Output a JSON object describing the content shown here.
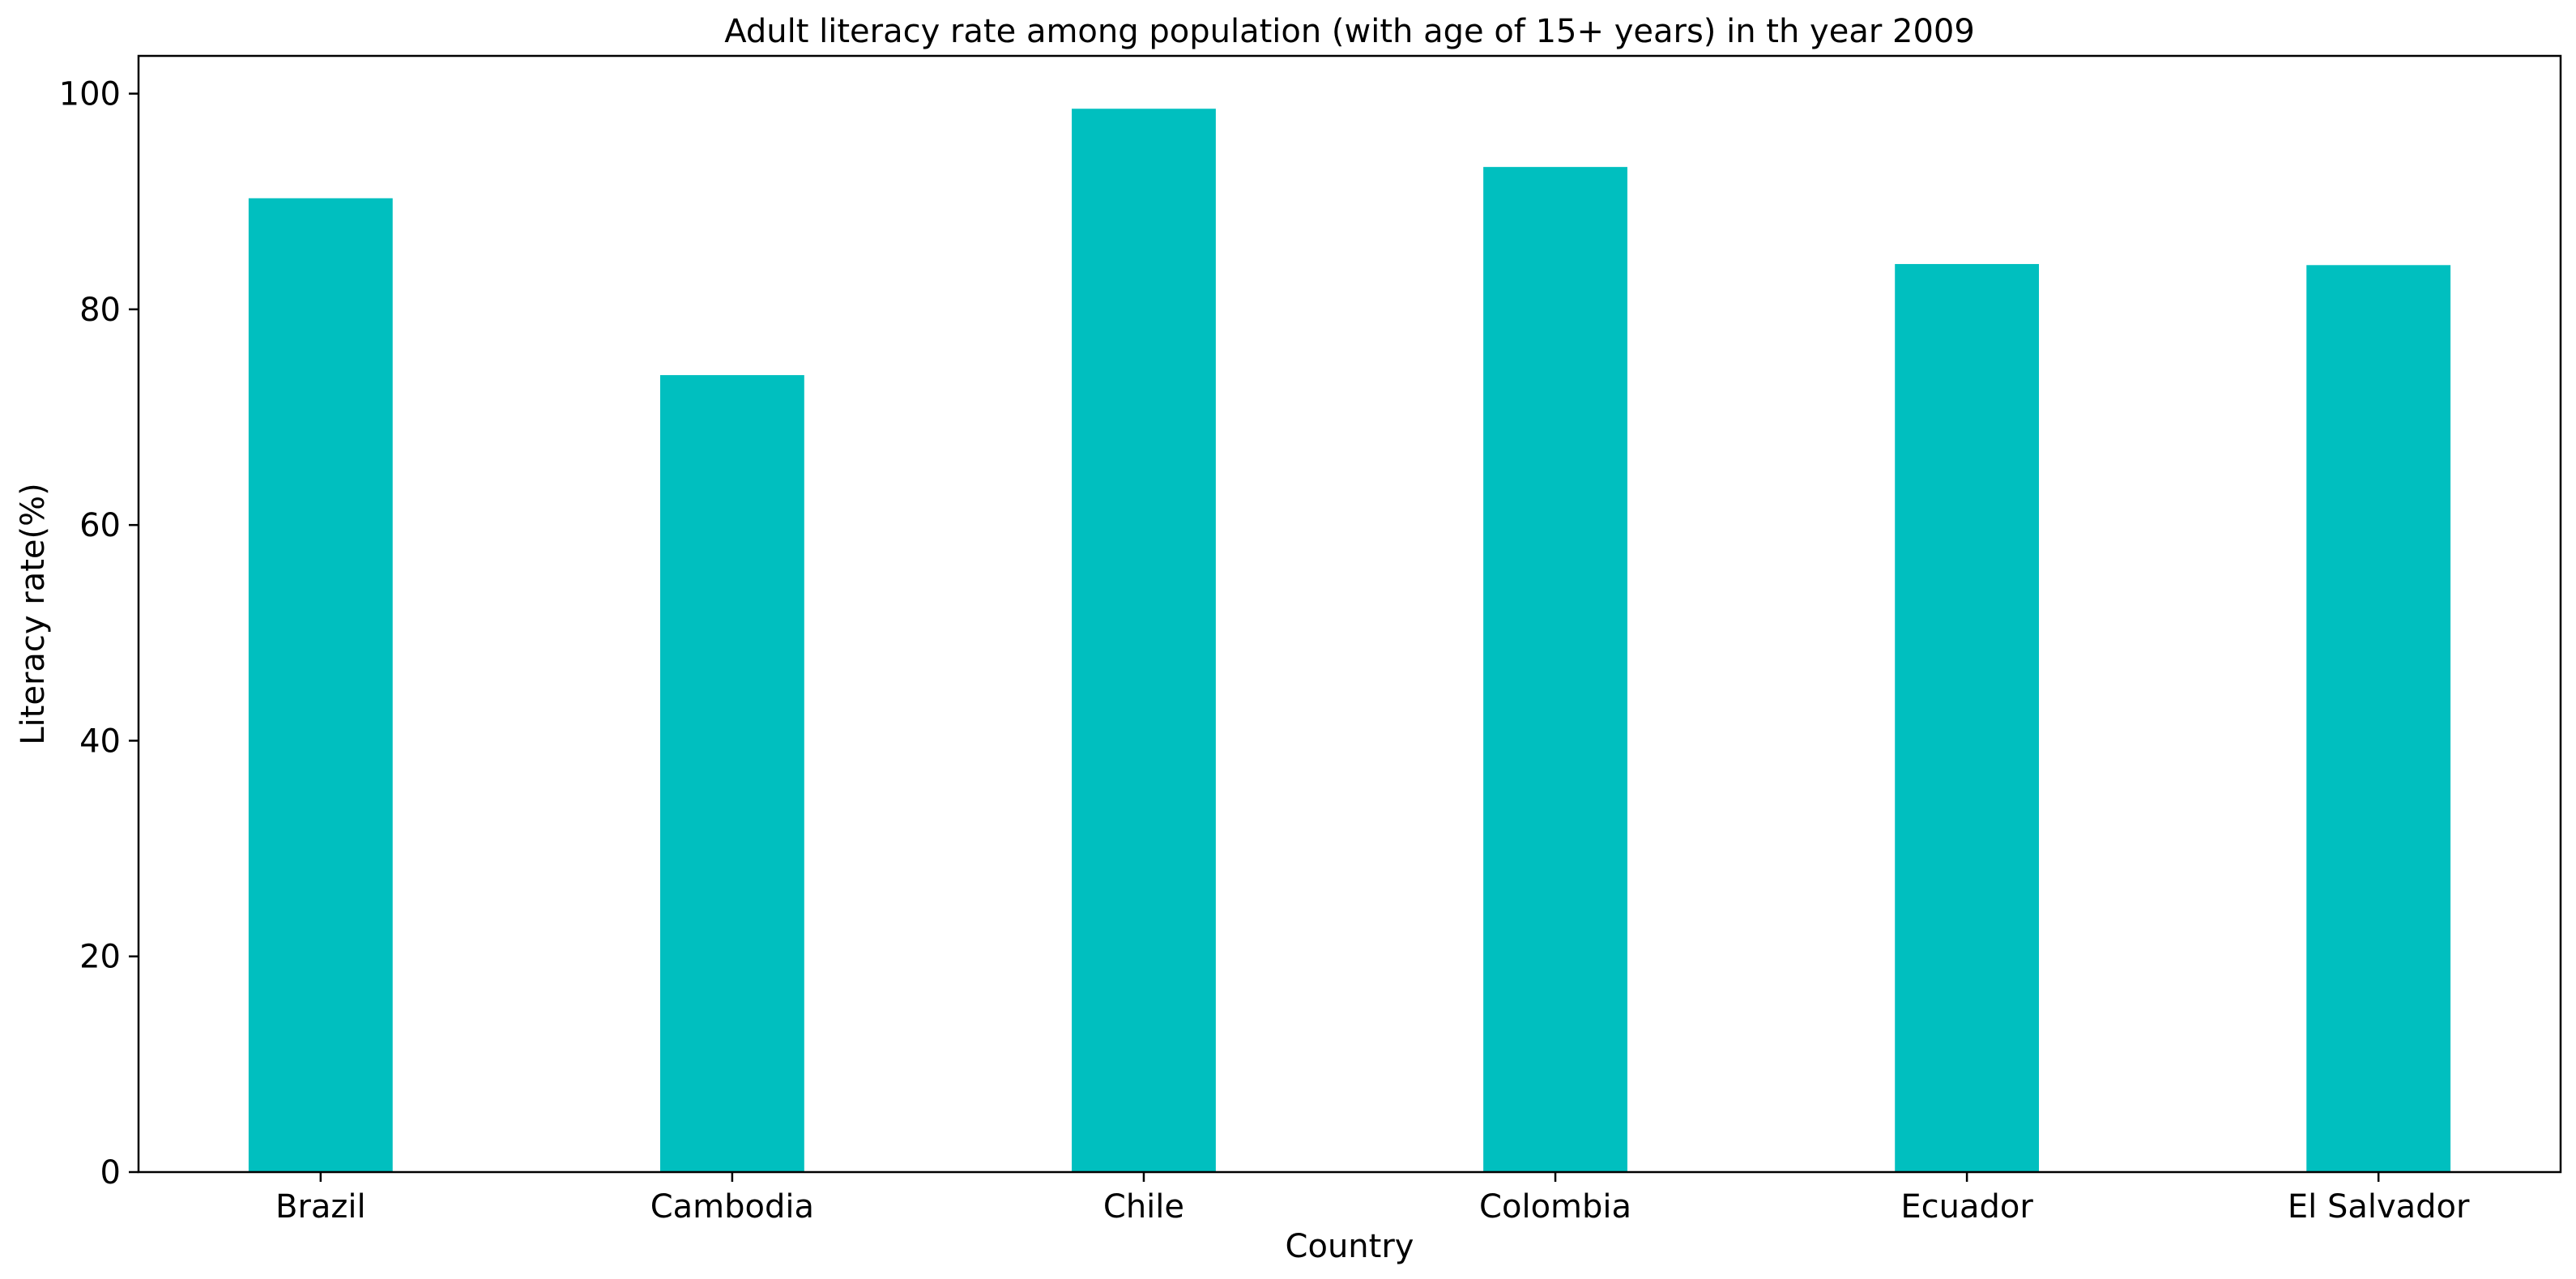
{
  "chart_data": {
    "type": "bar",
    "title": "Adult literacy rate among population (with age of 15+ years) in th year 2009",
    "xlabel": "Country",
    "ylabel": "Literacy rate(%)",
    "categories": [
      "Brazil",
      "Cambodia",
      "Chile",
      "Colombia",
      "Ecuador",
      "El Salvador"
    ],
    "values": [
      90.3,
      73.9,
      98.6,
      93.2,
      84.2,
      84.1
    ],
    "ylim": [
      0,
      103.5
    ],
    "yticks": [
      0,
      20,
      40,
      60,
      80,
      100
    ],
    "bar_color": "#00BFBF",
    "grid": false,
    "legend": "none"
  }
}
